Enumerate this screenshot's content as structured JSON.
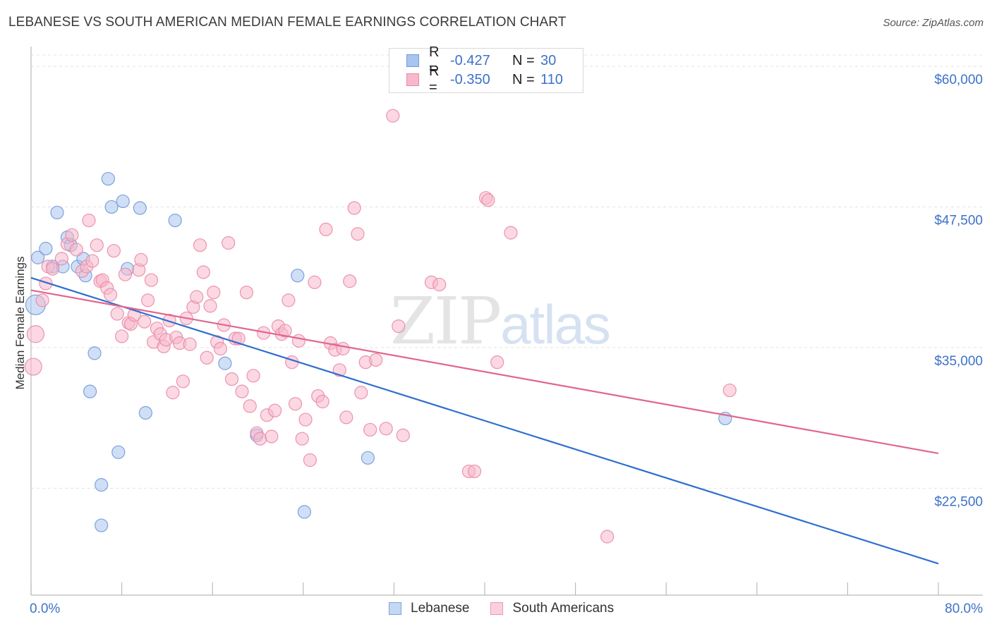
{
  "header": {
    "title": "LEBANESE VS SOUTH AMERICAN MEDIAN FEMALE EARNINGS CORRELATION CHART",
    "source": "Source: ZipAtlas.com"
  },
  "watermark": {
    "zip": "ZIP",
    "atlas": "atlas"
  },
  "legend": {
    "rows": [
      {
        "r_label": "R =",
        "r_value": "-0.427",
        "n_label": "N =",
        "n_value": "30"
      },
      {
        "r_label": "R =",
        "r_value": "-0.350",
        "n_label": "N =",
        "n_value": "110"
      }
    ]
  },
  "bottom_legend": {
    "lebanese": "Lebanese",
    "south_americans": "South Americans"
  },
  "axis": {
    "ylabel": "Median Female Earnings",
    "x_min_label": "0.0%",
    "x_max_label": "80.0%",
    "y_ticks": [
      "$60,000",
      "$47,500",
      "$35,000",
      "$22,500"
    ]
  },
  "colors": {
    "lebanese_fill": "#a9c4ee",
    "lebanese_stroke": "#6f9ad8",
    "lebanese_line": "#2f6fcf",
    "south_fill": "#f7b8cb",
    "south_stroke": "#e98aa8",
    "south_line": "#e0668f",
    "tick_text": "#3d72c9"
  },
  "chart_data": {
    "type": "scatter",
    "title": "LEBANESE VS SOUTH AMERICAN MEDIAN FEMALE EARNINGS CORRELATION CHART",
    "xlabel": "",
    "ylabel": "Median Female Earnings",
    "xlim": [
      0,
      80
    ],
    "ylim": [
      13000,
      61000
    ],
    "y_tick_values": [
      60000,
      47500,
      35000,
      22500
    ],
    "legend_placement": "top-center",
    "grid": true,
    "series": [
      {
        "name": "Lebanese",
        "r": -0.427,
        "n": 30,
        "trend": {
          "x": [
            0,
            80
          ],
          "y": [
            41200,
            15800
          ]
        },
        "points": [
          [
            0.4,
            38800,
            14
          ],
          [
            0.6,
            43000,
            9
          ],
          [
            1.3,
            43800,
            9
          ],
          [
            1.9,
            42200,
            9
          ],
          [
            2.3,
            47000,
            9
          ],
          [
            2.8,
            42200,
            9
          ],
          [
            3.2,
            44800,
            9
          ],
          [
            3.5,
            44100,
            9
          ],
          [
            4.1,
            42200,
            9
          ],
          [
            4.6,
            42900,
            9
          ],
          [
            4.8,
            41400,
            9
          ],
          [
            5.2,
            31100,
            9
          ],
          [
            5.6,
            34500,
            9
          ],
          [
            6.2,
            22800,
            9
          ],
          [
            6.2,
            19200,
            9
          ],
          [
            6.8,
            50000,
            9
          ],
          [
            7.1,
            47500,
            9
          ],
          [
            7.7,
            25700,
            9
          ],
          [
            8.1,
            48000,
            9
          ],
          [
            8.5,
            42000,
            9
          ],
          [
            9.6,
            47400,
            9
          ],
          [
            10.1,
            29200,
            9
          ],
          [
            12.7,
            46300,
            9
          ],
          [
            17.1,
            33600,
            9
          ],
          [
            19.9,
            27200,
            9
          ],
          [
            23.5,
            41400,
            9
          ],
          [
            24.1,
            20400,
            9
          ],
          [
            29.7,
            25200,
            9
          ],
          [
            61.2,
            28700,
            9
          ]
        ]
      },
      {
        "name": "South Americans",
        "r": -0.35,
        "n": 110,
        "trend": {
          "x": [
            0,
            80
          ],
          "y": [
            40100,
            25600
          ]
        },
        "points": [
          [
            0.2,
            33300,
            12
          ],
          [
            0.4,
            36200,
            12
          ],
          [
            1.0,
            39200,
            9
          ],
          [
            1.3,
            40700,
            9
          ],
          [
            1.5,
            42200,
            9
          ],
          [
            1.9,
            42000,
            9
          ],
          [
            2.7,
            42900,
            9
          ],
          [
            3.2,
            44200,
            9
          ],
          [
            3.6,
            45000,
            9
          ],
          [
            4.0,
            43700,
            9
          ],
          [
            4.5,
            41800,
            9
          ],
          [
            4.9,
            42200,
            9
          ],
          [
            5.1,
            46300,
            9
          ],
          [
            5.4,
            42700,
            9
          ],
          [
            5.8,
            44100,
            9
          ],
          [
            6.1,
            40900,
            9
          ],
          [
            6.3,
            41000,
            9
          ],
          [
            6.7,
            40300,
            9
          ],
          [
            7.0,
            39700,
            9
          ],
          [
            7.3,
            43600,
            9
          ],
          [
            7.6,
            38000,
            9
          ],
          [
            8.0,
            36000,
            9
          ],
          [
            8.3,
            41500,
            9
          ],
          [
            8.6,
            37200,
            9
          ],
          [
            8.8,
            37100,
            9
          ],
          [
            9.1,
            37900,
            9
          ],
          [
            9.5,
            41900,
            9
          ],
          [
            9.7,
            42800,
            9
          ],
          [
            10.0,
            37300,
            9
          ],
          [
            10.3,
            39200,
            9
          ],
          [
            10.6,
            41000,
            9
          ],
          [
            10.8,
            35500,
            9
          ],
          [
            11.1,
            36700,
            9
          ],
          [
            11.4,
            36200,
            9
          ],
          [
            11.7,
            35100,
            9
          ],
          [
            11.9,
            35700,
            9
          ],
          [
            12.2,
            37400,
            9
          ],
          [
            12.5,
            31000,
            9
          ],
          [
            12.8,
            35900,
            9
          ],
          [
            13.1,
            35400,
            9
          ],
          [
            13.4,
            32000,
            9
          ],
          [
            13.7,
            37600,
            9
          ],
          [
            14.0,
            35300,
            9
          ],
          [
            14.3,
            38600,
            9
          ],
          [
            14.6,
            39500,
            9
          ],
          [
            14.9,
            44100,
            9
          ],
          [
            15.2,
            41700,
            9
          ],
          [
            15.5,
            34100,
            9
          ],
          [
            15.8,
            38700,
            9
          ],
          [
            16.1,
            39900,
            9
          ],
          [
            16.4,
            35500,
            9
          ],
          [
            16.7,
            34900,
            9
          ],
          [
            17.0,
            37000,
            9
          ],
          [
            17.4,
            44300,
            9
          ],
          [
            17.7,
            32200,
            9
          ],
          [
            18.0,
            35800,
            9
          ],
          [
            18.3,
            35800,
            9
          ],
          [
            18.6,
            31100,
            9
          ],
          [
            19.0,
            39900,
            9
          ],
          [
            19.3,
            29800,
            9
          ],
          [
            19.6,
            32500,
            9
          ],
          [
            19.9,
            27400,
            9
          ],
          [
            20.2,
            26900,
            9
          ],
          [
            20.5,
            36300,
            9
          ],
          [
            20.8,
            29000,
            9
          ],
          [
            21.2,
            27100,
            9
          ],
          [
            21.5,
            29400,
            9
          ],
          [
            21.8,
            36900,
            9
          ],
          [
            22.1,
            36200,
            9
          ],
          [
            22.4,
            36500,
            9
          ],
          [
            22.7,
            39200,
            9
          ],
          [
            23.0,
            33700,
            9
          ],
          [
            23.3,
            30000,
            9
          ],
          [
            23.6,
            35600,
            9
          ],
          [
            23.9,
            26900,
            9
          ],
          [
            24.2,
            28600,
            9
          ],
          [
            24.6,
            25000,
            9
          ],
          [
            25.0,
            40800,
            9
          ],
          [
            25.3,
            30700,
            9
          ],
          [
            25.7,
            30200,
            9
          ],
          [
            26.0,
            45500,
            9
          ],
          [
            26.4,
            35400,
            9
          ],
          [
            26.8,
            34800,
            9
          ],
          [
            27.2,
            33000,
            9
          ],
          [
            27.5,
            34900,
            9
          ],
          [
            27.8,
            28800,
            9
          ],
          [
            28.1,
            40900,
            9
          ],
          [
            28.5,
            47400,
            9
          ],
          [
            28.8,
            45100,
            9
          ],
          [
            29.1,
            31000,
            9
          ],
          [
            29.5,
            33700,
            9
          ],
          [
            29.9,
            27700,
            9
          ],
          [
            30.4,
            33900,
            9
          ],
          [
            31.3,
            27800,
            9
          ],
          [
            31.9,
            55600,
            9
          ],
          [
            32.4,
            36900,
            9
          ],
          [
            32.8,
            27200,
            9
          ],
          [
            35.3,
            40800,
            9
          ],
          [
            36.0,
            40600,
            9
          ],
          [
            38.6,
            24000,
            9
          ],
          [
            39.1,
            24000,
            9
          ],
          [
            40.1,
            48300,
            9
          ],
          [
            40.3,
            48100,
            9
          ],
          [
            41.1,
            33700,
            9
          ],
          [
            42.3,
            45200,
            9
          ],
          [
            50.8,
            18200,
            9
          ],
          [
            61.6,
            31200,
            9
          ]
        ]
      }
    ]
  }
}
